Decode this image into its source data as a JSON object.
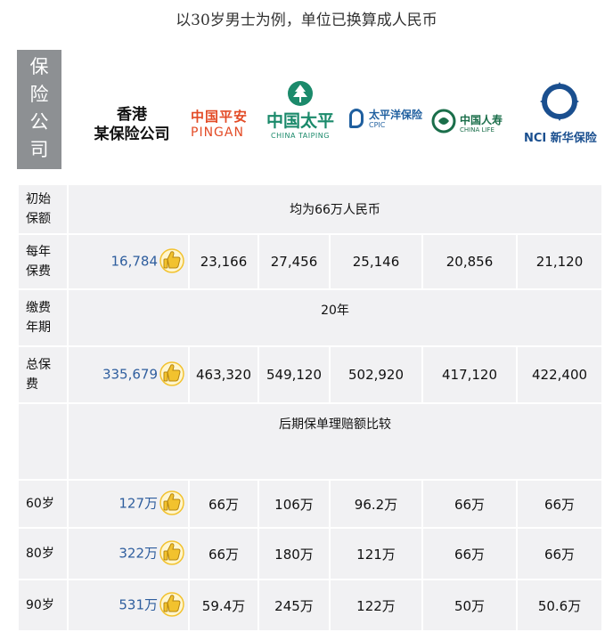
{
  "title": "以30岁男士为例，单位已换算成人民币",
  "side_label": [
    "保",
    "险",
    "公",
    "司"
  ],
  "hk_company": [
    "香港",
    "某保险公司"
  ],
  "companies": [
    {
      "icon": "ping-an-logo",
      "lines": [
        "中国平安",
        "PINGAN"
      ],
      "color": "#e34b26"
    },
    {
      "icon": "china-taiping-logo",
      "lines": [
        "中国太平",
        "CHINA TAIPING"
      ],
      "color": "#1b8a6b"
    },
    {
      "icon": "cpic-logo",
      "lines": [
        "太平洋保险",
        "CPIC"
      ],
      "color": "#1f5f9f"
    },
    {
      "icon": "china-life-logo",
      "lines": [
        "中国人寿",
        "CHINA LIFE"
      ],
      "color": "#1a6e4a"
    },
    {
      "icon": "nci-logo",
      "lines": [
        "NCI 新华保险"
      ],
      "color": "#1a4f8f"
    }
  ],
  "rows": {
    "initial_amount": {
      "label": [
        "初始",
        "保额"
      ],
      "value": "均为66万人民币"
    },
    "annual_premium": {
      "label": [
        "每年",
        "保费"
      ],
      "hk": "16,784",
      "values": [
        "23,166",
        "27,456",
        "25,146",
        "20,856",
        "21,120"
      ]
    },
    "payment_term": {
      "label": [
        "缴费",
        "年期"
      ],
      "value": "20年"
    },
    "total_premium": {
      "label": [
        "总保",
        "费"
      ],
      "hk": "335,679",
      "values": [
        "463,320",
        "549,120",
        "502,920",
        "417,120",
        "422,400"
      ]
    },
    "claims_header": "后期保单理赔额比较",
    "age60": {
      "label": "60岁",
      "hk": "127万",
      "values": [
        "66万",
        "106万",
        "96.2万",
        "66万",
        "66万"
      ]
    },
    "age80": {
      "label": "80岁",
      "hk": "322万",
      "values": [
        "66万",
        "180万",
        "121万",
        "66万",
        "66万"
      ]
    },
    "age90": {
      "label": "90岁",
      "hk": "531万",
      "values": [
        "59.4万",
        "245万",
        "122万",
        "50万",
        "50.6万"
      ]
    }
  },
  "icons": {
    "thumb": "thumbs-up-icon"
  },
  "colors": {
    "hk_value": "#2f5e9e",
    "cell_bg": "#f1f1f3",
    "side_label_bg": "#8d9093",
    "thumb": "#f2c22e"
  }
}
